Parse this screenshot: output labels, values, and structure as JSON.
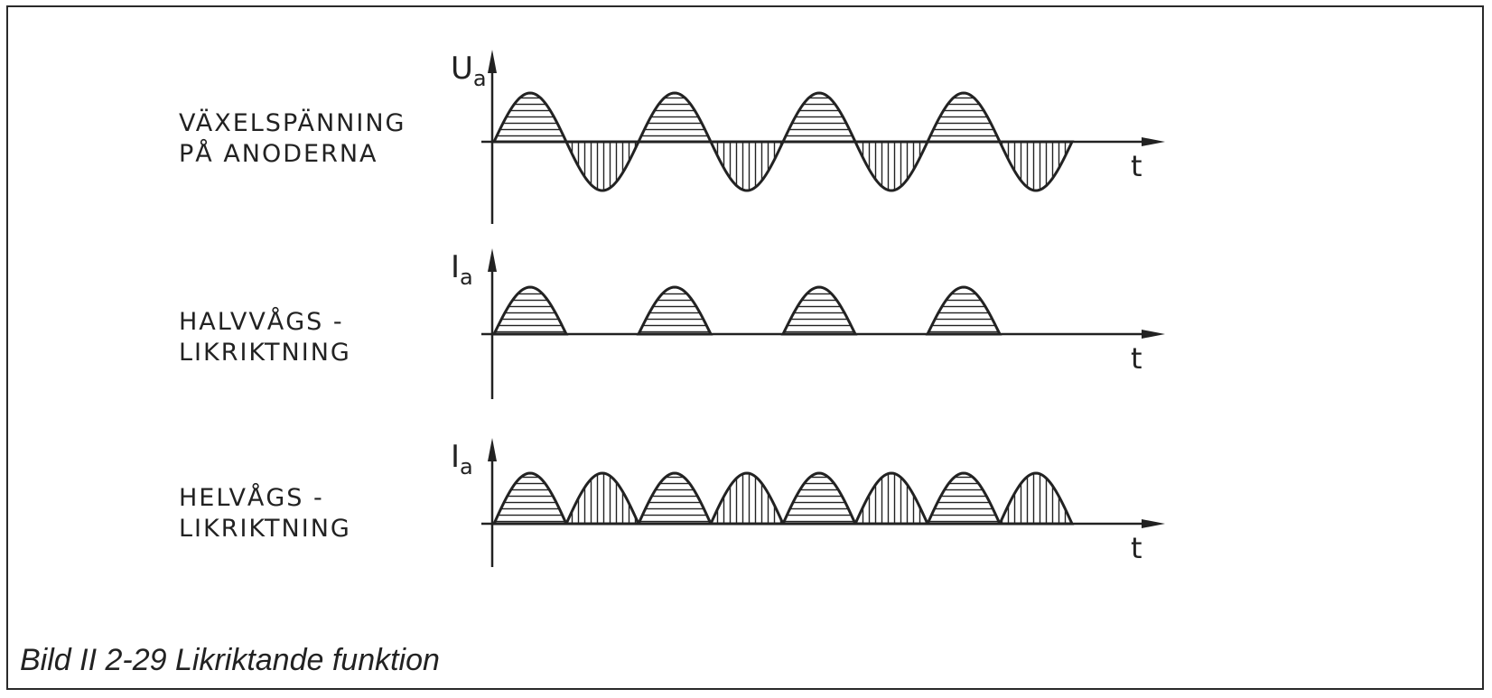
{
  "panels": [
    {
      "id": "ac",
      "label_lines": [
        "VÄXELSPÄNNING",
        "PÅ ANODERNA"
      ],
      "y_axis_symbol": "U",
      "y_axis_subscript": "a",
      "x_axis_symbol": "t",
      "waveform": "sine",
      "cycles": 4
    },
    {
      "id": "half",
      "label_lines": [
        "HALVVÅGS -",
        "LIKRIKTNING"
      ],
      "y_axis_symbol": "I",
      "y_axis_subscript": "a",
      "x_axis_symbol": "t",
      "waveform": "half-wave-rectified",
      "cycles": 4
    },
    {
      "id": "full",
      "label_lines": [
        "HELVÅGS -",
        "LIKRIKTNING"
      ],
      "y_axis_symbol": "I",
      "y_axis_subscript": "a",
      "x_axis_symbol": "t",
      "waveform": "full-wave-rectified",
      "cycles": 4
    }
  ],
  "caption": "Bild II 2-29 Likriktande funktion",
  "colors": {
    "ink": "#222222",
    "background": "#ffffff"
  }
}
